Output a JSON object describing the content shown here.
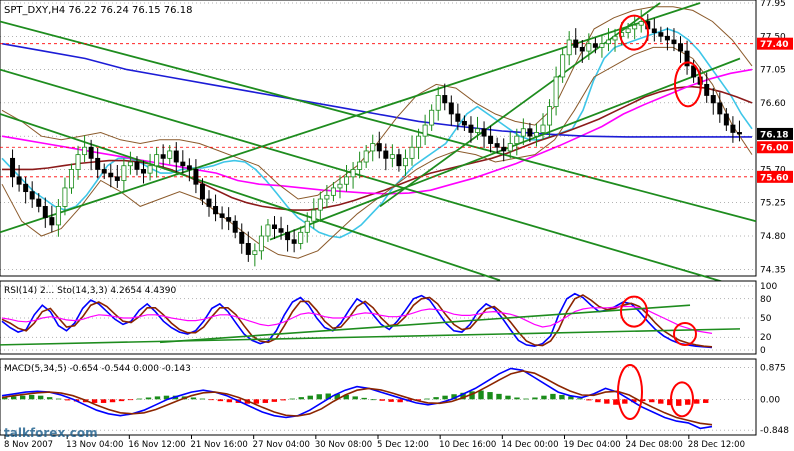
{
  "chart_data": [
    {
      "panel": "price",
      "type": "candlestick",
      "title": "SPT_DXY,H4  76.22 76.24 76.15 76.18",
      "ylim": [
        74.3,
        77.95
      ],
      "yticks": [
        "77.95",
        "77.50",
        "77.05",
        "76.60",
        "76.15",
        "75.70",
        "75.25",
        "74.80",
        "74.35"
      ],
      "ytick_values": [
        77.95,
        77.5,
        77.05,
        76.6,
        76.15,
        75.7,
        75.25,
        74.8,
        74.35
      ],
      "price_labels": [
        {
          "text": "77.40",
          "value": 77.4,
          "color": "#ff0000"
        },
        {
          "text": "76.18",
          "value": 76.18,
          "color": "#000000"
        },
        {
          "text": "76.00",
          "value": 76.0,
          "color": "#ff0000"
        },
        {
          "text": "75.60",
          "value": 75.6,
          "color": "#ff0000"
        }
      ],
      "close_series": [
        75.85,
        75.6,
        75.5,
        75.4,
        75.3,
        75.2,
        75.05,
        74.95,
        75.2,
        75.45,
        75.7,
        75.9,
        76.0,
        75.85,
        75.7,
        75.65,
        75.6,
        75.55,
        75.75,
        75.8,
        75.7,
        75.65,
        75.75,
        75.9,
        75.85,
        75.95,
        75.8,
        75.75,
        75.7,
        75.5,
        75.3,
        75.2,
        75.1,
        75.05,
        75.0,
        74.85,
        74.7,
        74.55,
        74.6,
        74.8,
        74.95,
        74.9,
        74.85,
        74.75,
        74.7,
        74.85,
        75.0,
        75.15,
        75.3,
        75.35,
        75.45,
        75.5,
        75.6,
        75.7,
        75.8,
        75.95,
        76.05,
        75.95,
        75.85,
        75.9,
        75.75,
        75.85,
        76.0,
        76.15,
        76.3,
        76.5,
        76.7,
        76.6,
        76.45,
        76.35,
        76.3,
        76.2,
        76.25,
        76.15,
        76.05,
        76.0,
        75.95,
        76.05,
        76.15,
        76.25,
        76.15,
        76.2,
        76.3,
        76.55,
        76.95,
        77.25,
        77.45,
        77.35,
        77.3,
        77.4,
        77.35,
        77.4,
        77.45,
        77.5,
        77.55,
        77.6,
        77.65,
        77.7,
        77.6,
        77.55,
        77.5,
        77.45,
        77.4,
        77.3,
        77.1,
        76.95,
        76.85,
        76.7,
        76.6,
        76.45,
        76.3,
        76.2,
        76.18
      ],
      "overlays": [
        {
          "kind": "moving-average",
          "color": "#3ec6e8",
          "values": [
            75.85,
            75.7,
            75.55,
            75.4,
            75.3,
            75.2,
            75.15,
            75.2,
            75.35,
            75.55,
            75.75,
            75.85,
            75.85,
            75.8,
            75.72,
            75.65,
            75.65,
            75.7,
            75.72,
            75.72,
            75.75,
            75.8,
            75.82,
            75.8,
            75.7,
            75.55,
            75.38,
            75.2,
            75.05,
            74.95,
            74.85,
            74.8,
            74.78,
            74.85,
            74.95,
            75.1,
            75.25,
            75.45,
            75.6,
            75.75,
            75.85,
            75.95,
            76.05,
            76.25,
            76.45,
            76.55,
            76.45,
            76.35,
            76.25,
            76.15,
            76.1,
            76.1,
            76.15,
            76.2,
            76.25,
            76.5,
            76.9,
            77.2,
            77.35,
            77.4,
            77.45,
            77.5,
            77.55,
            77.6,
            77.55,
            77.45,
            77.3,
            77.1,
            76.9,
            76.7,
            76.45,
            76.25
          ]
        },
        {
          "kind": "moving-average",
          "color": "#8b1a1a",
          "values": [
            75.7,
            75.7,
            75.7,
            75.72,
            75.75,
            75.78,
            75.8,
            75.82,
            75.82,
            75.8,
            75.76,
            75.7,
            75.62,
            75.52,
            75.42,
            75.32,
            75.25,
            75.2,
            75.17,
            75.15,
            75.15,
            75.18,
            75.22,
            75.28,
            75.35,
            75.42,
            75.5,
            75.58,
            75.65,
            75.7,
            75.75,
            75.8,
            75.85,
            75.92,
            76.0,
            76.08,
            76.15,
            76.22,
            76.3,
            76.38,
            76.48,
            76.58,
            76.68,
            76.75,
            76.8,
            76.82,
            76.8,
            76.75,
            76.68,
            76.6
          ]
        },
        {
          "kind": "moving-average",
          "color": "#ff00ff",
          "values": [
            76.15,
            76.1,
            76.05,
            76.0,
            75.95,
            75.9,
            75.85,
            75.8,
            75.75,
            75.7,
            75.65,
            75.55,
            75.5,
            75.48,
            75.45,
            75.42,
            75.4,
            75.38,
            75.37,
            75.38,
            75.42,
            75.5,
            75.58,
            75.68,
            75.78,
            75.9,
            76.02,
            76.15,
            76.28,
            76.45,
            76.58,
            76.7,
            76.82,
            76.92,
            77.0,
            77.05
          ]
        },
        {
          "kind": "moving-average",
          "color": "#1c1cd6",
          "values": [
            77.4,
            77.3,
            77.2,
            77.05,
            76.95,
            76.85,
            76.75,
            76.65,
            76.55,
            76.45,
            76.35,
            76.28,
            76.22,
            76.18,
            76.15,
            76.14,
            76.14,
            76.14,
            76.14
          ]
        },
        {
          "kind": "bollinger-band",
          "color": "#8b5a2b",
          "values": [
            75.5,
            75.0,
            74.8,
            74.9,
            75.2,
            75.55,
            75.4,
            75.2,
            75.3,
            75.4,
            75.3,
            75.1,
            74.9,
            74.7,
            74.55,
            74.5,
            74.6,
            74.85,
            75.1,
            75.3,
            75.5,
            75.7,
            75.85,
            75.95,
            75.9,
            75.8,
            75.85,
            75.9,
            76.1,
            76.5,
            76.95,
            77.1,
            77.25,
            77.35,
            77.35,
            77.2,
            76.85,
            76.3,
            75.9
          ]
        },
        {
          "kind": "bollinger-band",
          "color": "#8b5a2b",
          "values": [
            76.5,
            76.35,
            76.15,
            76.1,
            76.15,
            76.2,
            76.1,
            76.05,
            76.1,
            76.1,
            76.05,
            75.95,
            75.85,
            75.75,
            75.5,
            75.3,
            75.35,
            75.55,
            75.75,
            76.05,
            76.4,
            76.7,
            76.85,
            76.8,
            76.6,
            76.45,
            76.35,
            76.3,
            76.55,
            77.1,
            77.6,
            77.75,
            77.85,
            77.9,
            77.9,
            77.85,
            77.7,
            77.45,
            77.1
          ]
        }
      ]
    },
    {
      "panel": "rsi",
      "type": "line",
      "title": "RSI(14) 2... Sto(14,3,3) 4.2654 4.4390",
      "ylim": [
        0,
        100
      ],
      "yticks": [
        "100",
        "80",
        "50",
        "20",
        "0"
      ],
      "ytick_values": [
        100,
        80,
        50,
        20,
        0
      ],
      "series": [
        {
          "color": "#0000ff",
          "values": [
            45,
            35,
            28,
            32,
            55,
            70,
            60,
            38,
            30,
            42,
            65,
            78,
            72,
            60,
            48,
            40,
            45,
            62,
            72,
            60,
            45,
            35,
            28,
            25,
            30,
            45,
            65,
            72,
            60,
            42,
            25,
            15,
            10,
            14,
            30,
            55,
            75,
            82,
            70,
            50,
            35,
            30,
            42,
            62,
            80,
            72,
            55,
            40,
            32,
            45,
            62,
            80,
            85,
            78,
            60,
            42,
            30,
            28,
            40,
            60,
            72,
            65,
            50,
            32,
            15,
            8,
            6,
            10,
            22,
            55,
            80,
            88,
            82,
            70,
            60,
            62,
            68,
            75,
            72,
            60,
            45,
            32,
            22,
            15,
            10,
            8,
            6,
            5,
            4
          ]
        },
        {
          "color": "#8b2500",
          "values": [
            48,
            42,
            34,
            30,
            42,
            60,
            65,
            50,
            36,
            38,
            52,
            70,
            75,
            68,
            56,
            45,
            43,
            52,
            66,
            66,
            55,
            42,
            32,
            27,
            27,
            36,
            52,
            66,
            66,
            55,
            38,
            22,
            14,
            12,
            18,
            38,
            60,
            76,
            76,
            62,
            45,
            34,
            36,
            50,
            68,
            76,
            66,
            50,
            38,
            40,
            52,
            70,
            80,
            82,
            72,
            55,
            40,
            32,
            34,
            48,
            64,
            68,
            58,
            44,
            28,
            14,
            8,
            7,
            14,
            32,
            60,
            80,
            86,
            78,
            68,
            63,
            65,
            70,
            73,
            68,
            56,
            42,
            30,
            22,
            15,
            11,
            8,
            6,
            5
          ]
        },
        {
          "color": "#ff00ff",
          "values": [
            50,
            48,
            45,
            44,
            46,
            50,
            52,
            50,
            47,
            46,
            48,
            52,
            55,
            54,
            52,
            50,
            50,
            52,
            55,
            55,
            53,
            50,
            48,
            46,
            46,
            48,
            52,
            55,
            55,
            52,
            48,
            44,
            40,
            38,
            40,
            44,
            50,
            56,
            58,
            56,
            52,
            50,
            50,
            52,
            56,
            58,
            57,
            54,
            52,
            52,
            54,
            58,
            62,
            64,
            63,
            60,
            56,
            54,
            54,
            56,
            59,
            60,
            58,
            56,
            52,
            46,
            40,
            36,
            38,
            44,
            52,
            60,
            64,
            66,
            66,
            66,
            67,
            68,
            68,
            66,
            62,
            56,
            50,
            44,
            38,
            34,
            30,
            28,
            26
          ]
        }
      ]
    },
    {
      "panel": "macd",
      "type": "bar",
      "title": "MACD(5,34,5) -0.654 -0.544 0.000 -0.143",
      "ylim": [
        -0.9,
        1.0
      ],
      "yticks": [
        "0.875",
        "0.00",
        "-0.848"
      ],
      "ytick_values": [
        0.875,
        0.0,
        -0.848
      ],
      "histogram": [
        0.05,
        0.08,
        0.1,
        0.12,
        0.1,
        0.06,
        0.02,
        -0.03,
        -0.06,
        -0.08,
        -0.1,
        -0.1,
        -0.08,
        -0.05,
        -0.02,
        0.02,
        0.05,
        0.08,
        0.1,
        0.1,
        0.08,
        0.05,
        0.02,
        -0.02,
        -0.05,
        -0.08,
        -0.1,
        -0.12,
        -0.12,
        -0.1,
        -0.07,
        -0.03,
        0.02,
        0.06,
        0.1,
        0.14,
        0.16,
        0.15,
        0.12,
        0.08,
        0.04,
        0.0,
        -0.04,
        -0.07,
        -0.08,
        -0.06,
        -0.03,
        0.02,
        0.06,
        0.1,
        0.14,
        0.18,
        0.22,
        0.24,
        0.2,
        0.15,
        0.1,
        0.05,
        0.02,
        0.05,
        0.1,
        0.15,
        0.12,
        0.08,
        0.03,
        -0.03,
        -0.08,
        -0.12,
        -0.15,
        -0.12,
        -0.08,
        -0.05,
        -0.08,
        -0.12,
        -0.16,
        -0.18,
        -0.15,
        -0.12,
        -0.1
      ],
      "series": [
        {
          "color": "#0000ff",
          "values": [
            0.1,
            0.15,
            0.2,
            0.22,
            0.2,
            0.12,
            0.0,
            -0.15,
            -0.3,
            -0.4,
            -0.45,
            -0.4,
            -0.3,
            -0.15,
            0.0,
            0.1,
            0.2,
            0.25,
            0.2,
            0.1,
            -0.05,
            -0.2,
            -0.35,
            -0.45,
            -0.5,
            -0.45,
            -0.3,
            -0.1,
            0.1,
            0.25,
            0.35,
            0.3,
            0.2,
            0.1,
            0.0,
            -0.1,
            -0.15,
            -0.1,
            0.0,
            0.15,
            0.3,
            0.5,
            0.7,
            0.85,
            0.8,
            0.6,
            0.4,
            0.2,
            0.1,
            0.05,
            0.15,
            0.3,
            0.2,
            0.0,
            -0.2,
            -0.35,
            -0.5,
            -0.6,
            -0.65,
            -0.8,
            -0.75
          ]
        },
        {
          "color": "#8b2500",
          "values": [
            0.05,
            0.1,
            0.14,
            0.18,
            0.2,
            0.17,
            0.1,
            -0.02,
            -0.16,
            -0.28,
            -0.37,
            -0.4,
            -0.37,
            -0.28,
            -0.15,
            -0.02,
            0.1,
            0.18,
            0.2,
            0.15,
            0.05,
            -0.08,
            -0.22,
            -0.35,
            -0.44,
            -0.46,
            -0.4,
            -0.26,
            -0.06,
            0.12,
            0.25,
            0.3,
            0.26,
            0.17,
            0.07,
            -0.03,
            -0.1,
            -0.11,
            -0.06,
            0.05,
            0.18,
            0.35,
            0.53,
            0.7,
            0.78,
            0.72,
            0.56,
            0.38,
            0.23,
            0.12,
            0.11,
            0.2,
            0.22,
            0.12,
            -0.06,
            -0.22,
            -0.37,
            -0.5,
            -0.58,
            -0.66,
            -0.7
          ]
        }
      ]
    }
  ],
  "time_axis": {
    "labels": [
      "8 Nov 2007",
      "13 Nov 04:00",
      "16 Nov 12:00",
      "21 Nov 16:00",
      "27 Nov 04:00",
      "30 Nov 08:00",
      "5 Dec 12:00",
      "10 Dec 16:00",
      "14 Dec 00:00",
      "19 Dec 04:00",
      "24 Dec 08:00",
      "28 Dec 12:00"
    ]
  },
  "watermark": {
    "text": "talkforex.com",
    "color": "#1a5c8a"
  },
  "colors": {
    "background": "#ffffff",
    "trendline": "#1e8c1e",
    "frame": "#000000",
    "grid": "#000000",
    "bull_candle": "#1a8c1a",
    "bear_candle": "#000000",
    "highlight": "#ff0000"
  }
}
